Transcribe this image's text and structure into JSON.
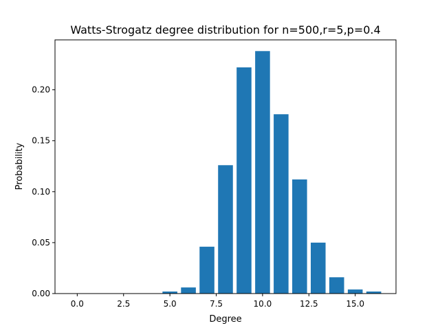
{
  "chart_data": {
    "type": "bar",
    "title": "Watts-Strogatz degree distribution for n=500,r=5,p=0.4",
    "xlabel": "Degree",
    "ylabel": "Probability",
    "xlim": [
      -1.2,
      17.2
    ],
    "ylim": [
      0,
      0.249
    ],
    "x": [
      0,
      1,
      2,
      3,
      4,
      5,
      6,
      7,
      8,
      9,
      10,
      11,
      12,
      13,
      14,
      15,
      16
    ],
    "values": [
      0,
      0,
      0,
      0,
      0,
      0.002,
      0.006,
      0.046,
      0.126,
      0.222,
      0.238,
      0.176,
      0.112,
      0.05,
      0.016,
      0.004,
      0.002
    ],
    "bar_color": "#1f77b4",
    "xticks": [
      0.0,
      2.5,
      5.0,
      7.5,
      10.0,
      12.5,
      15.0
    ],
    "xtick_labels": [
      "0.0",
      "2.5",
      "5.0",
      "7.5",
      "10.0",
      "12.5",
      "15.0"
    ],
    "yticks": [
      0.0,
      0.05,
      0.1,
      0.15,
      0.2
    ],
    "ytick_labels": [
      "0.00",
      "0.05",
      "0.10",
      "0.15",
      "0.20"
    ],
    "grid": false
  }
}
